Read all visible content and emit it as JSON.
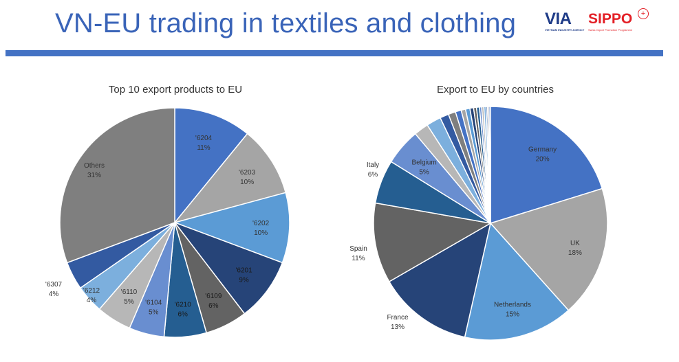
{
  "header": {
    "title": "VN-EU trading in textiles and clothing",
    "logo_via": "VIA",
    "logo_via_sub": "VIETNAM INDUSTRY AGENCY",
    "logo_sippo": "SIPPO",
    "logo_sippo_sub": "Swiss Import Promotion Programme",
    "accent_color": "#4472c4"
  },
  "chart_data": [
    {
      "type": "pie",
      "title": "Top 10 export products to EU",
      "slices": [
        {
          "label": "'6204",
          "value": 11,
          "pct": "11%",
          "color": "#4472c4"
        },
        {
          "label": "'6203",
          "value": 10,
          "pct": "10%",
          "color": "#a5a5a5"
        },
        {
          "label": "'6202",
          "value": 10,
          "pct": "10%",
          "color": "#5b9bd5"
        },
        {
          "label": "'6201",
          "value": 9,
          "pct": "9%",
          "color": "#264478"
        },
        {
          "label": "'6109",
          "value": 6,
          "pct": "6%",
          "color": "#636363"
        },
        {
          "label": "'6210",
          "value": 6,
          "pct": "6%",
          "color": "#255e91"
        },
        {
          "label": "'6104",
          "value": 5,
          "pct": "5%",
          "color": "#698ed0"
        },
        {
          "label": "'6110",
          "value": 5,
          "pct": "5%",
          "color": "#b7b7b7"
        },
        {
          "label": "'6212",
          "value": 4,
          "pct": "4%",
          "color": "#7cafdd"
        },
        {
          "label": "'6307",
          "value": 4,
          "pct": "4%",
          "color": "#335aa1"
        },
        {
          "label": "Others",
          "value": 31,
          "pct": "31%",
          "color": "#7f7f7f"
        }
      ]
    },
    {
      "type": "pie",
      "title": "Export to EU by countries",
      "slices": [
        {
          "label": "Germany",
          "value": 20,
          "pct": "20%",
          "color": "#4472c4"
        },
        {
          "label": "UK",
          "value": 18,
          "pct": "18%",
          "color": "#a5a5a5"
        },
        {
          "label": "Netherlands",
          "value": 15,
          "pct": "15%",
          "color": "#5b9bd5"
        },
        {
          "label": "France",
          "value": 13,
          "pct": "13%",
          "color": "#264478"
        },
        {
          "label": "Spain",
          "value": 11,
          "pct": "11%",
          "color": "#636363"
        },
        {
          "label": "Italy",
          "value": 6,
          "pct": "6%",
          "color": "#255e91"
        },
        {
          "label": "Belgium",
          "value": 5,
          "pct": "5%",
          "color": "#698ed0"
        },
        {
          "label": "",
          "value": 2,
          "pct": "",
          "color": "#b7b7b7"
        },
        {
          "label": "",
          "value": 2,
          "pct": "",
          "color": "#7cafdd"
        },
        {
          "label": "",
          "value": 1.2,
          "pct": "",
          "color": "#335aa1"
        },
        {
          "label": "",
          "value": 1,
          "pct": "",
          "color": "#7f7f7f"
        },
        {
          "label": "",
          "value": 0.8,
          "pct": "",
          "color": "#4472c4"
        },
        {
          "label": "",
          "value": 0.6,
          "pct": "",
          "color": "#a5a5a5"
        },
        {
          "label": "",
          "value": 0.6,
          "pct": "",
          "color": "#5b9bd5"
        },
        {
          "label": "",
          "value": 0.5,
          "pct": "",
          "color": "#264478"
        },
        {
          "label": "",
          "value": 0.4,
          "pct": "",
          "color": "#636363"
        },
        {
          "label": "",
          "value": 0.4,
          "pct": "",
          "color": "#255e91"
        },
        {
          "label": "",
          "value": 0.3,
          "pct": "",
          "color": "#698ed0"
        },
        {
          "label": "",
          "value": 0.3,
          "pct": "",
          "color": "#b7b7b7"
        },
        {
          "label": "",
          "value": 0.3,
          "pct": "",
          "color": "#7cafdd"
        },
        {
          "label": "",
          "value": 0.2,
          "pct": "",
          "color": "#335aa1"
        },
        {
          "label": "",
          "value": 0.2,
          "pct": "",
          "color": "#7f7f7f"
        },
        {
          "label": "",
          "value": 0.2,
          "pct": "",
          "color": "#4472c4"
        }
      ]
    }
  ]
}
